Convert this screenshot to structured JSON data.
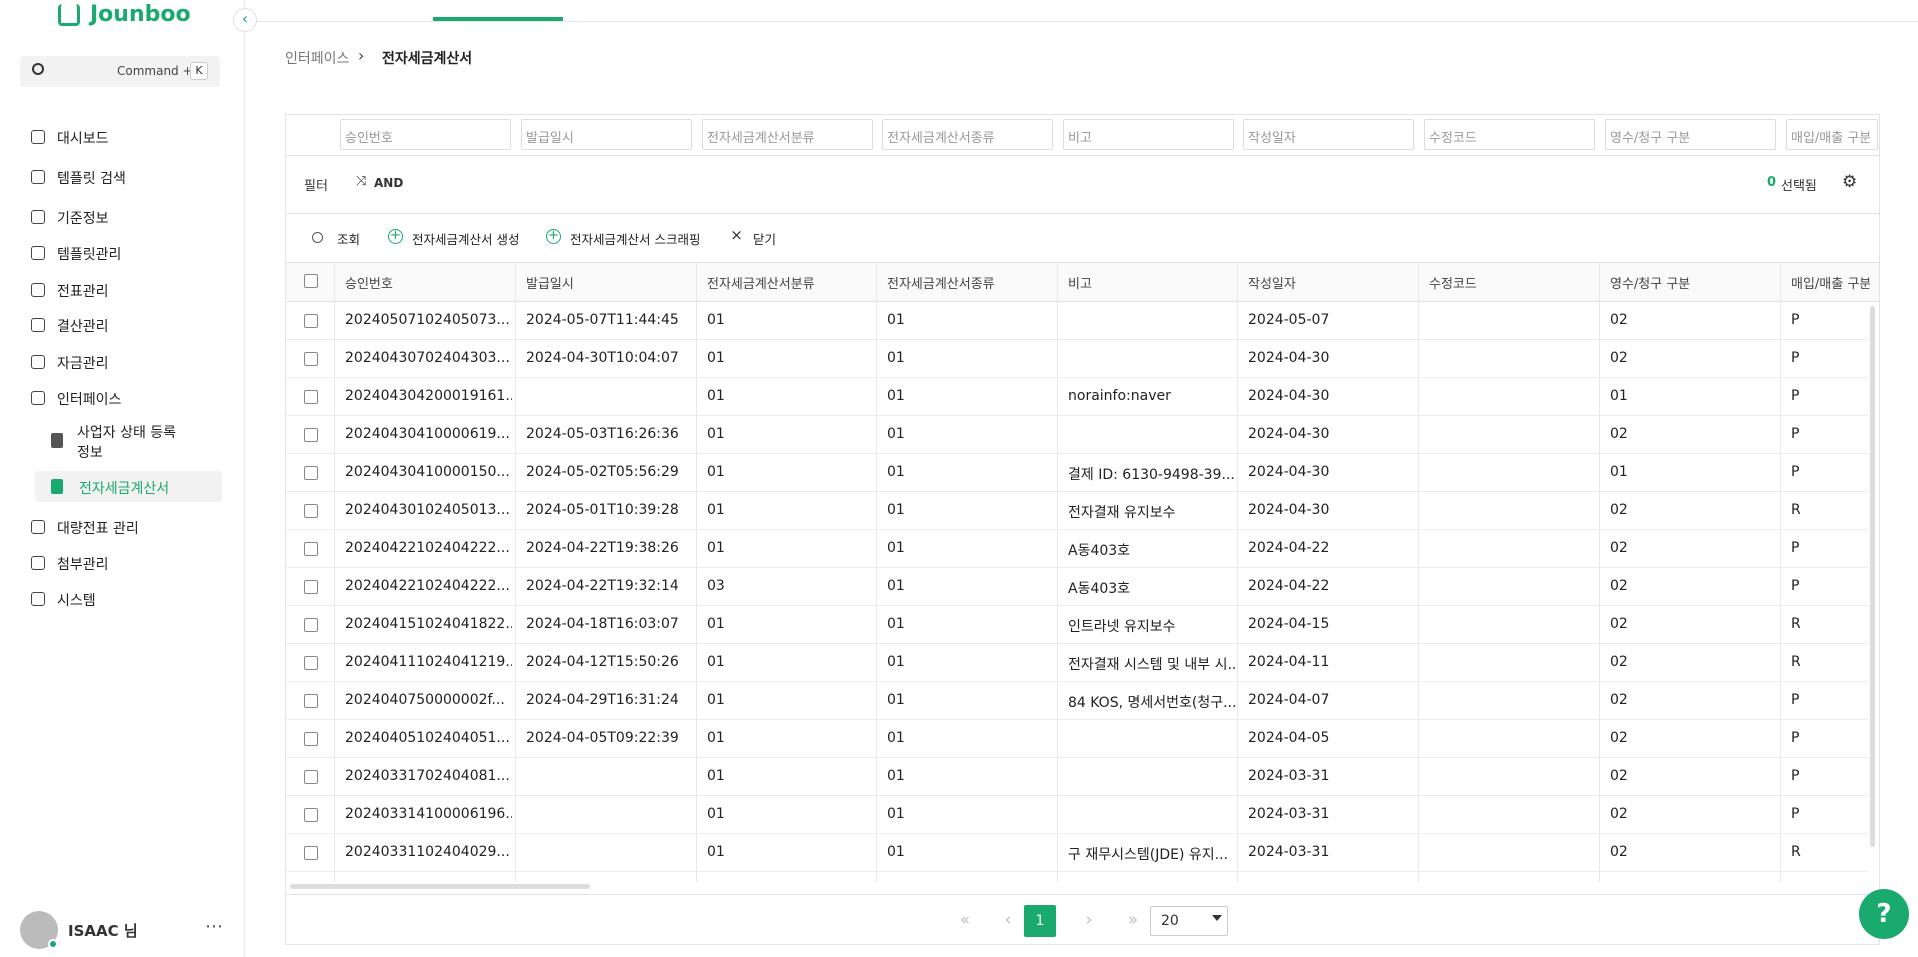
{
  "sidebar": {
    "logo": "Jounboo",
    "search_shortcut": "Command +",
    "search_key": "K",
    "nav": [
      "대시보드",
      "템플릿 검색",
      "기준정보",
      "템플릿관리",
      "전표관리",
      "결산관리",
      "자금관리",
      "인터페이스"
    ],
    "sub_nav": [
      "사업자 상태 등록 정보",
      "전자세금계산서"
    ],
    "nav_after": [
      "대량전표 관리",
      "첨부관리",
      "시스템"
    ],
    "user": "ISAAC 님"
  },
  "breadcrumb": [
    "인터페이스",
    "전자세금계산서"
  ],
  "toolbar": {
    "filter": "필터",
    "logic": "AND",
    "selected_count": "0",
    "selected_label": "선택됨",
    "actions": [
      "조회",
      "전자세금계산서 생성",
      "전자세금계산서 스크래핑",
      "닫기"
    ]
  },
  "table": {
    "columns": [
      "승인번호",
      "발급일시",
      "전자세금계산서분류",
      "전자세금계산서종류",
      "비고",
      "작성일자",
      "수정코드",
      "영수/청구 구분",
      "매입/매출 구분"
    ],
    "rows": [
      [
        "20240507102405073...",
        "2024-05-07T11:44:45",
        "01",
        "01",
        null,
        "2024-05-07",
        null,
        "02",
        "P"
      ],
      [
        "20240430702404303...",
        "2024-04-30T10:04:07",
        "01",
        "01",
        null,
        "2024-04-30",
        null,
        "02",
        "P"
      ],
      [
        "202404304200019161...",
        null,
        "01",
        "01",
        "norainfo:naver",
        "2024-04-30",
        null,
        "01",
        "P"
      ],
      [
        "20240430410000619...",
        "2024-05-03T16:26:36",
        "01",
        "01",
        null,
        "2024-04-30",
        null,
        "02",
        "P"
      ],
      [
        "20240430410000150...",
        "2024-05-02T05:56:29",
        "01",
        "01",
        "결제 ID: 6130-9498-39...",
        "2024-04-30",
        null,
        "01",
        "P"
      ],
      [
        "20240430102405013...",
        "2024-05-01T10:39:28",
        "01",
        "01",
        "전자결재 유지보수",
        "2024-04-30",
        null,
        "02",
        "R"
      ],
      [
        "20240422102404222...",
        "2024-04-22T19:38:26",
        "01",
        "01",
        "A동403호",
        "2024-04-22",
        null,
        "02",
        "P"
      ],
      [
        "20240422102404222...",
        "2024-04-22T19:32:14",
        "03",
        "01",
        "A동403호",
        "2024-04-22",
        null,
        "02",
        "P"
      ],
      [
        "202404151024041822...",
        "2024-04-18T16:03:07",
        "01",
        "01",
        "인트라넷 유지보수",
        "2024-04-15",
        null,
        "02",
        "R"
      ],
      [
        "202404111024041219...",
        "2024-04-12T15:50:26",
        "01",
        "01",
        "전자결재 시스템 및 내부 시...",
        "2024-04-11",
        null,
        "02",
        "R"
      ],
      [
        "2024040750000002f...",
        "2024-04-29T16:31:24",
        "01",
        "01",
        "84 KOS, 명세서번호(청구...",
        "2024-04-07",
        null,
        "02",
        "P"
      ],
      [
        "20240405102404051...",
        "2024-04-05T09:22:39",
        "01",
        "01",
        null,
        "2024-04-05",
        null,
        "02",
        "P"
      ],
      [
        "20240331702404081...",
        null,
        "01",
        "01",
        null,
        "2024-03-31",
        null,
        "02",
        "P"
      ],
      [
        "202403314100006196...",
        null,
        "01",
        "01",
        null,
        "2024-03-31",
        null,
        "02",
        "P"
      ],
      [
        "20240331102404029...",
        null,
        "01",
        "01",
        "구 재무시스템(JDE) 유지...",
        "2024-03-31",
        null,
        "02",
        "R"
      ]
    ]
  },
  "pagination": {
    "current": "1",
    "page_size": "20"
  }
}
